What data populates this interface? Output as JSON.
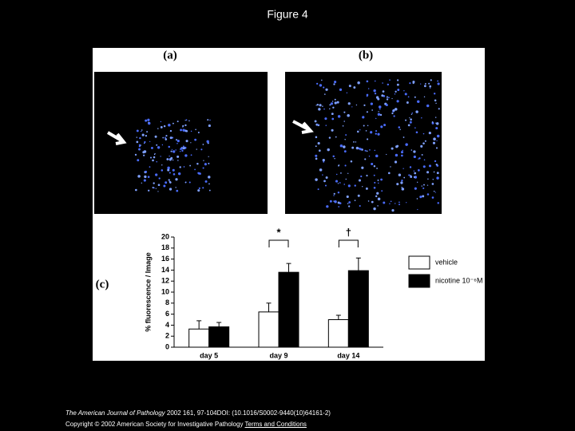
{
  "title": "Figure 4",
  "panels": {
    "a": "(a)",
    "b": "(b)",
    "c": "(c)"
  },
  "chart_data": {
    "type": "bar",
    "y_label": "% fluorescence / Image",
    "categories": [
      "day 5",
      "day 9",
      "day 14"
    ],
    "series": [
      {
        "name": "vehicle",
        "color": "#ffffff",
        "values": [
          3.3,
          6.4,
          5.0
        ],
        "errors": [
          1.5,
          1.6,
          0.8
        ]
      },
      {
        "name": "nicotine 10⁻⁶M",
        "color": "#000000",
        "values": [
          3.7,
          13.6,
          13.9
        ],
        "errors": [
          0.8,
          1.6,
          2.3
        ]
      }
    ],
    "annotations": [
      "*",
      "†"
    ],
    "ylim": [
      0,
      20
    ],
    "yticks": [
      0,
      2,
      4,
      6,
      8,
      10,
      12,
      14,
      16,
      18,
      20
    ]
  },
  "footer": {
    "journal": "The American Journal of Pathology",
    "details": " 2002 161, 97-104DOI: (10.1016/S0002-9440(10)64161-2)",
    "copyright": "Copyright © 2002 American Society for Investigative Pathology",
    "link": "Terms and Conditions"
  }
}
